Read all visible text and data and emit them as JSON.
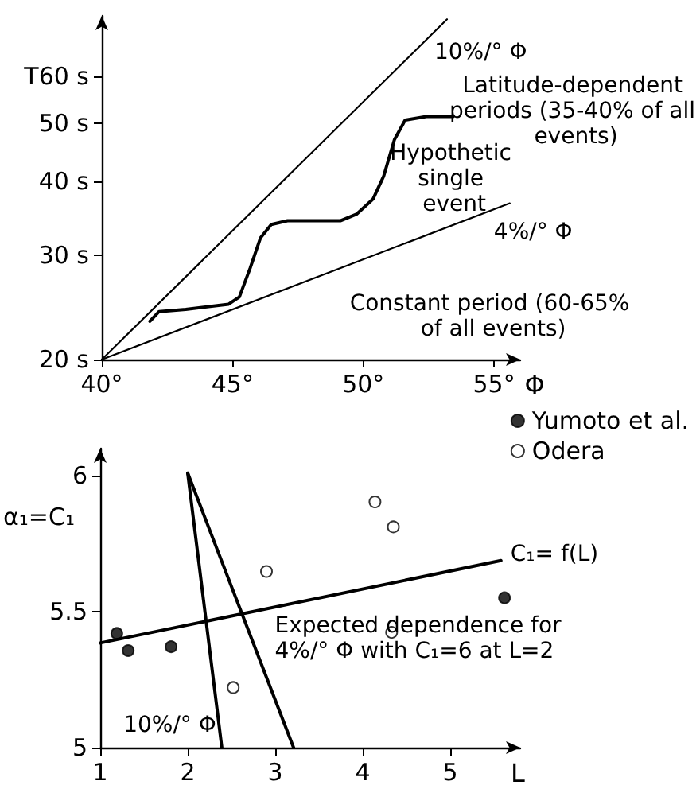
{
  "chart_data": [
    {
      "type": "line",
      "log": "y",
      "xlim": [
        40,
        56
      ],
      "ylim": [
        20,
        76
      ],
      "xticks": [
        {
          "value": 40,
          "label": "40°"
        },
        {
          "value": 45,
          "label": "45°"
        },
        {
          "value": 50,
          "label": "50°"
        },
        {
          "value": 55,
          "label": "55°"
        }
      ],
      "yticks": [
        {
          "value": 20,
          "label": "20 s"
        },
        {
          "value": 30,
          "label": "30 s"
        },
        {
          "value": 40,
          "label": "40 s"
        },
        {
          "value": 50,
          "label": "50 s"
        },
        {
          "value": 60,
          "label": "T60 s"
        }
      ],
      "xlabel": "Φ",
      "grid": false,
      "marker": "none",
      "line_style": "solid",
      "series": [
        {
          "color": "#000000",
          "x": [
            40,
            53.2
          ],
          "values": [
            20,
            75
          ]
        },
        {
          "color": "#000000",
          "x": [
            40,
            55.6
          ],
          "values": [
            20,
            36.7
          ]
        },
        {
          "color": "#000000",
          "x": [
            41.84,
            42.19,
            43.21,
            44.85,
            45.26,
            45.67,
            46.07,
            46.48,
            47.1,
            49.14,
            49.75,
            50.37,
            50.78,
            51.19,
            51.6,
            52.41,
            53.44
          ],
          "values": [
            23.2,
            24.1,
            24.3,
            24.8,
            25.5,
            28.5,
            32.1,
            33.8,
            34.3,
            34.3,
            35.2,
            37.3,
            40.8,
            47,
            50.7,
            51.4,
            51.4
          ]
        }
      ],
      "annotations": [
        {
          "text": "10%/° Φ",
          "x": 53.2,
          "y": 75
        },
        {
          "text": "4%/° Φ",
          "x": 55.6,
          "y": 36.7
        },
        {
          "text": "Hypothetic single event",
          "x": 50.8,
          "y": 40.8
        },
        "Latitude-dependent periods (35-40% of all events)",
        "Constant period (60-65% of all events)"
      ]
    },
    {
      "type": "scatter",
      "xlim": [
        1,
        5.8
      ],
      "ylim": [
        5,
        6.1
      ],
      "xticks": [
        1,
        2,
        3,
        4,
        5
      ],
      "yticks": [
        5,
        5.5,
        6
      ],
      "xlabel": "L",
      "ylabel": "α₁=C₁",
      "legend": "top right",
      "grid": false,
      "marker": "circle",
      "series": [
        {
          "name": "Yumoto et al.",
          "color": "#000000",
          "x": [
            1.19,
            1.32,
            1.81,
            5.62
          ],
          "values": [
            5.42,
            5.357,
            5.371,
            5.551
          ]
        },
        {
          "name": "Odera",
          "color": "#ffffff",
          "x": [
            4.14,
            4.35,
            2.9,
            4.33,
            2.52
          ],
          "values": [
            5.904,
            5.812,
            5.648,
            5.424,
            5.221
          ]
        },
        {
          "type": "line",
          "marker": "none",
          "color": "#000000",
          "x": [
            1,
            5.58
          ],
          "values": [
            5.385,
            5.688
          ]
        },
        {
          "type": "line",
          "marker": "none",
          "color": "#000000",
          "x": [
            2,
            2.39
          ],
          "values": [
            6.01,
            5
          ]
        },
        {
          "type": "line",
          "marker": "none",
          "color": "#000000",
          "x": [
            2,
            3.21
          ],
          "values": [
            6.01,
            5
          ]
        }
      ],
      "annotations": [
        {
          "text": "C₁= f(L)",
          "x": 5.58,
          "y": 5.688
        },
        {
          "text": "Expected dependence for 4%/° Φ with C₁=6 at L=2",
          "x": 2.85,
          "y": 5.33
        },
        {
          "text": "10%/° Φ",
          "x": 2.32,
          "y": 5.24
        }
      ]
    }
  ]
}
